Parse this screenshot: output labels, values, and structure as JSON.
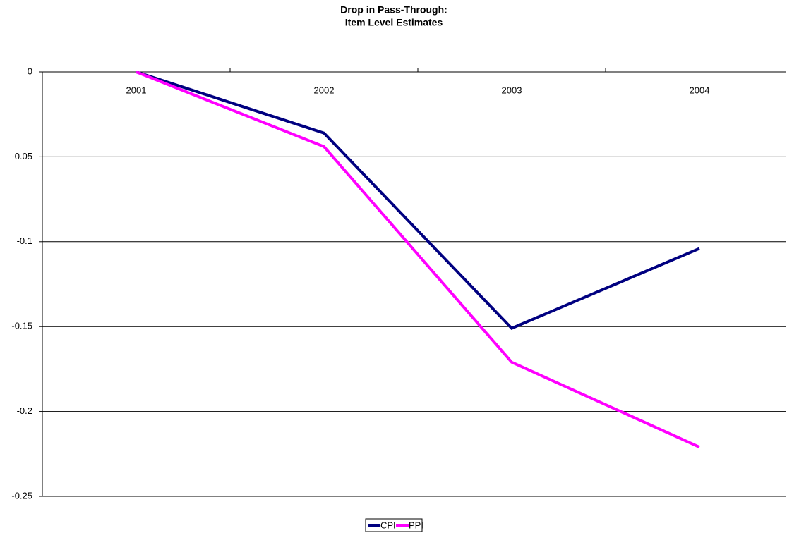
{
  "chart_data": {
    "type": "line",
    "title": [
      "Drop in Pass-Through:",
      "Item Level Estimates"
    ],
    "categories": [
      "2001",
      "2002",
      "2003",
      "2004"
    ],
    "series": [
      {
        "name": "CPI",
        "color": "#000080",
        "values": [
          0,
          -0.036,
          -0.151,
          -0.104
        ]
      },
      {
        "name": "PPI",
        "color": "#ff00ff",
        "values": [
          0,
          -0.044,
          -0.171,
          -0.221
        ]
      }
    ],
    "ylim": [
      -0.25,
      0
    ],
    "yticks": [
      0,
      -0.05,
      -0.1,
      -0.15,
      -0.2,
      -0.25
    ],
    "grid": true,
    "legend": "bottom"
  }
}
